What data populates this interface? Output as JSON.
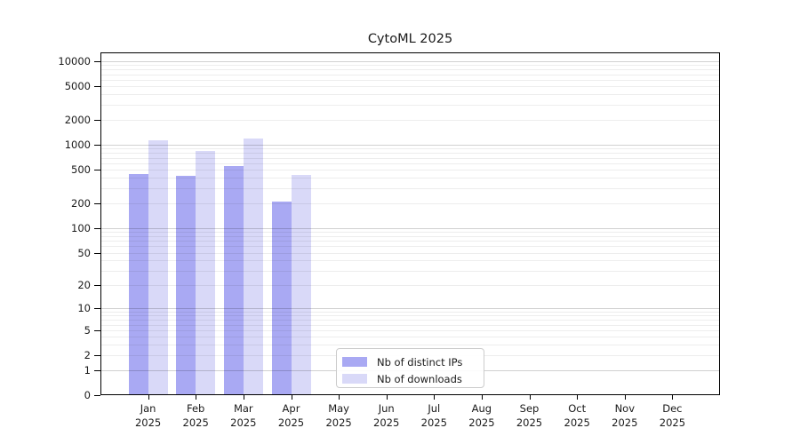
{
  "title": "CytoML 2025",
  "chart_data": {
    "type": "bar",
    "title": "CytoML 2025",
    "categories": [
      "Jan 2025",
      "Feb 2025",
      "Mar 2025",
      "Apr 2025",
      "May 2025",
      "Jun 2025",
      "Jul 2025",
      "Aug 2025",
      "Sep 2025",
      "Oct 2025",
      "Nov 2025",
      "Dec 2025"
    ],
    "series": [
      {
        "name": "Nb of distinct IPs",
        "color": "#a9a9f3",
        "values": [
          445,
          420,
          550,
          210,
          null,
          null,
          null,
          null,
          null,
          null,
          null,
          null
        ]
      },
      {
        "name": "Nb of downloads",
        "color": "#d9d9f8",
        "values": [
          1120,
          850,
          1190,
          435,
          null,
          null,
          null,
          null,
          null,
          null,
          null,
          null
        ]
      }
    ],
    "xlabel": "",
    "ylabel": "",
    "y_ticks": [
      0,
      1,
      2,
      5,
      10,
      20,
      50,
      100,
      200,
      500,
      1000,
      2000,
      5000,
      10000
    ],
    "y_scale": "log10(1+value)",
    "ylim": [
      0,
      12600
    ],
    "grid": "both",
    "legend_position": "lower center"
  }
}
